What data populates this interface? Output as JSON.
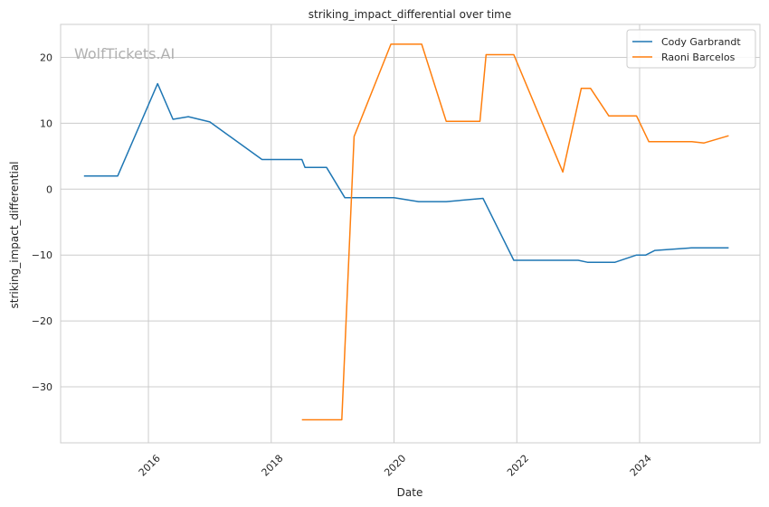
{
  "chart_data": {
    "type": "line",
    "title": "striking_impact_differential over time",
    "xlabel": "Date",
    "ylabel": "striking_impact_differential",
    "watermark": "WolfTickets.AI",
    "xlim": [
      2014.57,
      2025.96
    ],
    "ylim": [
      -38.5,
      25
    ],
    "x_ticks": [
      2016,
      2018,
      2020,
      2022,
      2024
    ],
    "y_ticks": [
      -30,
      -20,
      -10,
      0,
      10,
      20
    ],
    "grid": true,
    "legend_position": "top-right",
    "series": [
      {
        "name": "Cody Garbrandt",
        "color": "#1f77b4",
        "points": [
          [
            2014.95,
            2.0
          ],
          [
            2015.5,
            2.0
          ],
          [
            2016.15,
            16.0
          ],
          [
            2016.4,
            10.6
          ],
          [
            2016.65,
            11.0
          ],
          [
            2017.0,
            10.2
          ],
          [
            2017.85,
            4.5
          ],
          [
            2018.5,
            4.5
          ],
          [
            2018.55,
            3.3
          ],
          [
            2018.9,
            3.3
          ],
          [
            2019.2,
            -1.3
          ],
          [
            2020.0,
            -1.3
          ],
          [
            2020.4,
            -1.9
          ],
          [
            2020.85,
            -1.9
          ],
          [
            2021.45,
            -1.4
          ],
          [
            2021.95,
            -10.8
          ],
          [
            2023.0,
            -10.8
          ],
          [
            2023.15,
            -11.1
          ],
          [
            2023.6,
            -11.1
          ],
          [
            2023.95,
            -10.0
          ],
          [
            2024.1,
            -10.0
          ],
          [
            2024.25,
            -9.3
          ],
          [
            2024.85,
            -8.9
          ],
          [
            2025.45,
            -8.9
          ]
        ]
      },
      {
        "name": "Raoni Barcelos",
        "color": "#ff7f0e",
        "points": [
          [
            2018.5,
            -35.0
          ],
          [
            2019.15,
            -35.0
          ],
          [
            2019.35,
            8.0
          ],
          [
            2019.95,
            22.0
          ],
          [
            2020.45,
            22.0
          ],
          [
            2020.85,
            10.3
          ],
          [
            2021.4,
            10.3
          ],
          [
            2021.5,
            20.4
          ],
          [
            2021.95,
            20.4
          ],
          [
            2022.75,
            2.6
          ],
          [
            2023.05,
            15.3
          ],
          [
            2023.2,
            15.3
          ],
          [
            2023.5,
            11.1
          ],
          [
            2023.95,
            11.1
          ],
          [
            2024.15,
            7.2
          ],
          [
            2024.85,
            7.2
          ],
          [
            2025.05,
            7.0
          ],
          [
            2025.45,
            8.1
          ]
        ]
      }
    ]
  }
}
